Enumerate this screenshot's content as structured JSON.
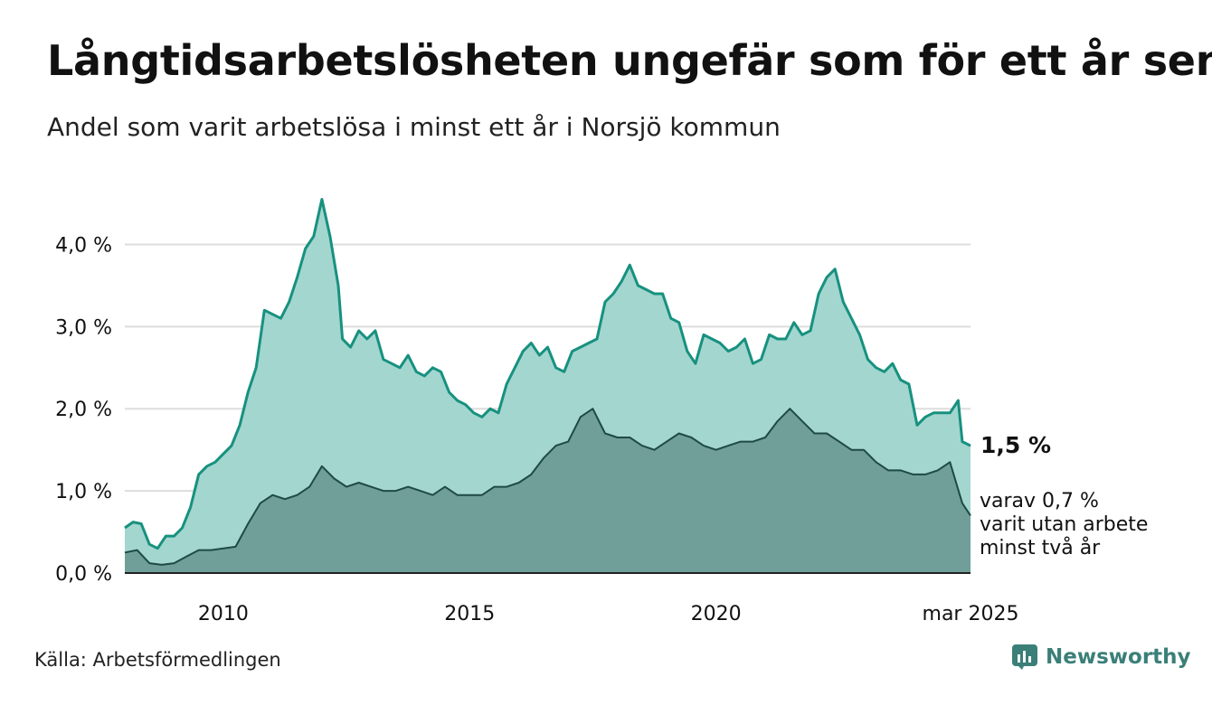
{
  "header": {
    "title": "Långtidsarbetslösheten ungefär som för ett år sen",
    "subtitle": "Andel som varit arbetslösa i minst ett år i Norsjö kommun"
  },
  "footer": {
    "source": "Källa: Arbetsförmedlingen",
    "brand": "Newsworthy",
    "brand_icon": "newsworthy-logo-icon",
    "brand_color": "#3a7f78"
  },
  "chart_data": {
    "type": "area",
    "ylim": [
      0,
      4.5
    ],
    "y_ticks": [
      0,
      1,
      2,
      3,
      4
    ],
    "y_tick_labels": [
      "0,0 %",
      "1,0 %",
      "2,0 %",
      "3,0 %",
      "4,0 %"
    ],
    "x_range": [
      "2008-01",
      "2025-03"
    ],
    "x_ticks": [
      "2010-01",
      "2015-01",
      "2020-01",
      "2025-03"
    ],
    "x_tick_labels": [
      "2010",
      "2015",
      "2020",
      "mar 2025"
    ],
    "grid": true,
    "series": [
      {
        "key": "total",
        "line_color": "#17917f",
        "fill_color": "#a3d6cf",
        "end_label": "1,5 %",
        "points": [
          [
            "2008-01",
            0.55
          ],
          [
            "2008-03",
            0.62
          ],
          [
            "2008-05",
            0.6
          ],
          [
            "2008-07",
            0.35
          ],
          [
            "2008-09",
            0.3
          ],
          [
            "2008-11",
            0.45
          ],
          [
            "2009-01",
            0.45
          ],
          [
            "2009-03",
            0.55
          ],
          [
            "2009-05",
            0.8
          ],
          [
            "2009-07",
            1.2
          ],
          [
            "2009-09",
            1.3
          ],
          [
            "2009-11",
            1.35
          ],
          [
            "2010-01",
            1.45
          ],
          [
            "2010-03",
            1.55
          ],
          [
            "2010-05",
            1.8
          ],
          [
            "2010-07",
            2.2
          ],
          [
            "2010-09",
            2.5
          ],
          [
            "2010-11",
            3.2
          ],
          [
            "2011-01",
            3.15
          ],
          [
            "2011-03",
            3.1
          ],
          [
            "2011-05",
            3.3
          ],
          [
            "2011-07",
            3.6
          ],
          [
            "2011-09",
            3.95
          ],
          [
            "2011-11",
            4.1
          ],
          [
            "2012-01",
            4.55
          ],
          [
            "2012-03",
            4.1
          ],
          [
            "2012-05",
            3.5
          ],
          [
            "2012-06",
            2.85
          ],
          [
            "2012-08",
            2.75
          ],
          [
            "2012-10",
            2.95
          ],
          [
            "2012-12",
            2.85
          ],
          [
            "2013-02",
            2.95
          ],
          [
            "2013-04",
            2.6
          ],
          [
            "2013-06",
            2.55
          ],
          [
            "2013-08",
            2.5
          ],
          [
            "2013-10",
            2.65
          ],
          [
            "2013-12",
            2.45
          ],
          [
            "2014-02",
            2.4
          ],
          [
            "2014-04",
            2.5
          ],
          [
            "2014-06",
            2.45
          ],
          [
            "2014-08",
            2.2
          ],
          [
            "2014-10",
            2.1
          ],
          [
            "2014-12",
            2.05
          ],
          [
            "2015-02",
            1.95
          ],
          [
            "2015-04",
            1.9
          ],
          [
            "2015-06",
            2.0
          ],
          [
            "2015-08",
            1.95
          ],
          [
            "2015-10",
            2.3
          ],
          [
            "2015-12",
            2.5
          ],
          [
            "2016-02",
            2.7
          ],
          [
            "2016-04",
            2.8
          ],
          [
            "2016-06",
            2.65
          ],
          [
            "2016-08",
            2.75
          ],
          [
            "2016-10",
            2.5
          ],
          [
            "2016-12",
            2.45
          ],
          [
            "2017-02",
            2.7
          ],
          [
            "2017-04",
            2.75
          ],
          [
            "2017-06",
            2.8
          ],
          [
            "2017-08",
            2.85
          ],
          [
            "2017-10",
            3.3
          ],
          [
            "2017-12",
            3.4
          ],
          [
            "2018-02",
            3.55
          ],
          [
            "2018-04",
            3.75
          ],
          [
            "2018-06",
            3.5
          ],
          [
            "2018-08",
            3.45
          ],
          [
            "2018-10",
            3.4
          ],
          [
            "2018-12",
            3.4
          ],
          [
            "2019-02",
            3.1
          ],
          [
            "2019-04",
            3.05
          ],
          [
            "2019-06",
            2.7
          ],
          [
            "2019-08",
            2.55
          ],
          [
            "2019-10",
            2.9
          ],
          [
            "2019-12",
            2.85
          ],
          [
            "2020-02",
            2.8
          ],
          [
            "2020-04",
            2.7
          ],
          [
            "2020-06",
            2.75
          ],
          [
            "2020-08",
            2.85
          ],
          [
            "2020-10",
            2.55
          ],
          [
            "2020-12",
            2.6
          ],
          [
            "2021-02",
            2.9
          ],
          [
            "2021-04",
            2.85
          ],
          [
            "2021-06",
            2.85
          ],
          [
            "2021-08",
            3.05
          ],
          [
            "2021-10",
            2.9
          ],
          [
            "2021-12",
            2.95
          ],
          [
            "2022-02",
            3.4
          ],
          [
            "2022-04",
            3.6
          ],
          [
            "2022-06",
            3.7
          ],
          [
            "2022-08",
            3.3
          ],
          [
            "2022-10",
            3.1
          ],
          [
            "2022-12",
            2.9
          ],
          [
            "2023-02",
            2.6
          ],
          [
            "2023-04",
            2.5
          ],
          [
            "2023-06",
            2.45
          ],
          [
            "2023-08",
            2.55
          ],
          [
            "2023-10",
            2.35
          ],
          [
            "2023-12",
            2.3
          ],
          [
            "2024-02",
            1.8
          ],
          [
            "2024-04",
            1.9
          ],
          [
            "2024-06",
            1.95
          ],
          [
            "2024-08",
            1.95
          ],
          [
            "2024-10",
            1.95
          ],
          [
            "2024-12",
            2.1
          ],
          [
            "2025-01",
            1.6
          ],
          [
            "2025-03",
            1.55
          ]
        ]
      },
      {
        "key": "two_years",
        "line_color": "#1f4a44",
        "fill_color": "#6f9f98",
        "end_label": "varav 0,7 %\nvarit utan arbete\nminst två år",
        "points": [
          [
            "2008-01",
            0.25
          ],
          [
            "2008-04",
            0.28
          ],
          [
            "2008-07",
            0.12
          ],
          [
            "2008-10",
            0.1
          ],
          [
            "2009-01",
            0.12
          ],
          [
            "2009-04",
            0.2
          ],
          [
            "2009-07",
            0.28
          ],
          [
            "2009-10",
            0.28
          ],
          [
            "2010-01",
            0.3
          ],
          [
            "2010-04",
            0.32
          ],
          [
            "2010-07",
            0.6
          ],
          [
            "2010-10",
            0.85
          ],
          [
            "2011-01",
            0.95
          ],
          [
            "2011-04",
            0.9
          ],
          [
            "2011-07",
            0.95
          ],
          [
            "2011-10",
            1.05
          ],
          [
            "2012-01",
            1.3
          ],
          [
            "2012-04",
            1.15
          ],
          [
            "2012-07",
            1.05
          ],
          [
            "2012-10",
            1.1
          ],
          [
            "2013-01",
            1.05
          ],
          [
            "2013-04",
            1.0
          ],
          [
            "2013-07",
            1.0
          ],
          [
            "2013-10",
            1.05
          ],
          [
            "2014-01",
            1.0
          ],
          [
            "2014-04",
            0.95
          ],
          [
            "2014-07",
            1.05
          ],
          [
            "2014-10",
            0.95
          ],
          [
            "2015-01",
            0.95
          ],
          [
            "2015-04",
            0.95
          ],
          [
            "2015-07",
            1.05
          ],
          [
            "2015-10",
            1.05
          ],
          [
            "2016-01",
            1.1
          ],
          [
            "2016-04",
            1.2
          ],
          [
            "2016-07",
            1.4
          ],
          [
            "2016-10",
            1.55
          ],
          [
            "2017-01",
            1.6
          ],
          [
            "2017-04",
            1.9
          ],
          [
            "2017-07",
            2.0
          ],
          [
            "2017-10",
            1.7
          ],
          [
            "2018-01",
            1.65
          ],
          [
            "2018-04",
            1.65
          ],
          [
            "2018-07",
            1.55
          ],
          [
            "2018-10",
            1.5
          ],
          [
            "2019-01",
            1.6
          ],
          [
            "2019-04",
            1.7
          ],
          [
            "2019-07",
            1.65
          ],
          [
            "2019-10",
            1.55
          ],
          [
            "2020-01",
            1.5
          ],
          [
            "2020-04",
            1.55
          ],
          [
            "2020-07",
            1.6
          ],
          [
            "2020-10",
            1.6
          ],
          [
            "2021-01",
            1.65
          ],
          [
            "2021-04",
            1.85
          ],
          [
            "2021-07",
            2.0
          ],
          [
            "2021-10",
            1.85
          ],
          [
            "2022-01",
            1.7
          ],
          [
            "2022-04",
            1.7
          ],
          [
            "2022-07",
            1.6
          ],
          [
            "2022-10",
            1.5
          ],
          [
            "2023-01",
            1.5
          ],
          [
            "2023-04",
            1.35
          ],
          [
            "2023-07",
            1.25
          ],
          [
            "2023-10",
            1.25
          ],
          [
            "2024-01",
            1.2
          ],
          [
            "2024-04",
            1.2
          ],
          [
            "2024-07",
            1.25
          ],
          [
            "2024-10",
            1.35
          ],
          [
            "2025-01",
            0.85
          ],
          [
            "2025-03",
            0.7
          ]
        ]
      }
    ]
  }
}
